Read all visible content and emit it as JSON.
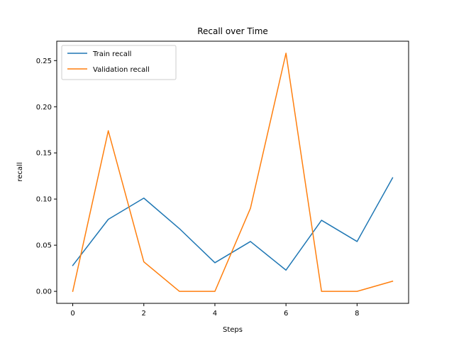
{
  "chart_data": {
    "type": "line",
    "title": "Recall over Time",
    "xlabel": "Steps",
    "ylabel": "recall",
    "x": [
      0,
      1,
      2,
      3,
      4,
      5,
      6,
      7,
      8,
      9
    ],
    "xlim": [
      -0.45,
      9.45
    ],
    "ylim": [
      -0.013,
      0.271
    ],
    "xticks": [
      0,
      2,
      4,
      6,
      8
    ],
    "yticks": [
      0.0,
      0.05,
      0.1,
      0.15,
      0.2,
      0.25
    ],
    "ytick_labels": [
      "0.00",
      "0.05",
      "0.10",
      "0.15",
      "0.20",
      "0.25"
    ],
    "grid": false,
    "legend_position": "top-left",
    "series": [
      {
        "name": "Train recall",
        "color": "#1f77b4",
        "values": [
          0.028,
          0.078,
          0.101,
          0.068,
          0.031,
          0.054,
          0.023,
          0.077,
          0.054,
          0.123
        ]
      },
      {
        "name": "Validation recall",
        "color": "#ff7f0e",
        "values": [
          0.0,
          0.174,
          0.032,
          0.0,
          0.0,
          0.09,
          0.258,
          0.0,
          0.0,
          0.011
        ]
      }
    ]
  }
}
